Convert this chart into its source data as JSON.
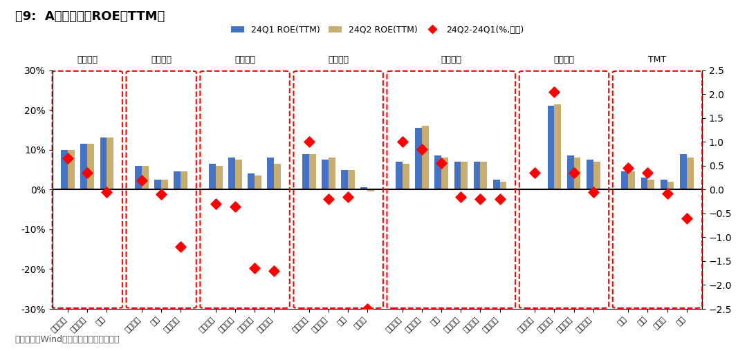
{
  "title": "图9:  A股一级行业ROE（TTM）",
  "footnote": "数据来源：Wind，广发证券发展研究中心",
  "legend": [
    "24Q1 ROE(TTM)",
    "24Q2 ROE(TTM)",
    "24Q2-24Q1(%,右轴)"
  ],
  "bar_color_q1": "#4472C4",
  "bar_color_q2": "#C9AD6E",
  "diamond_color": "#FF0000",
  "groups": [
    {
      "name": "上游资源",
      "categories": [
        "有色金属",
        "石油石化",
        "煤炭"
      ],
      "q1": [
        10.0,
        11.5,
        13.0
      ],
      "q2": [
        10.0,
        11.5,
        13.0
      ],
      "diff": [
        0.65,
        0.35,
        -0.05
      ]
    },
    {
      "name": "中游材料",
      "categories": [
        "基础化工",
        "钢铁",
        "建筑材料"
      ],
      "q1": [
        6.0,
        2.5,
        4.5
      ],
      "q2": [
        6.0,
        2.5,
        4.5
      ],
      "diff": [
        0.2,
        -0.1,
        -1.2
      ]
    },
    {
      "name": "中游制造",
      "categories": [
        "机械设备",
        "建筑装饰",
        "国防军工",
        "电力设备"
      ],
      "q1": [
        6.5,
        8.0,
        4.0,
        8.0
      ],
      "q2": [
        6.0,
        7.5,
        3.5,
        6.5
      ],
      "diff": [
        -0.3,
        -0.35,
        -1.65,
        -1.7
      ]
    },
    {
      "name": "其他周期",
      "categories": [
        "公用事业",
        "交通运输",
        "环保",
        "房地产"
      ],
      "q1": [
        9.0,
        7.5,
        5.0,
        0.5
      ],
      "q2": [
        9.0,
        8.0,
        5.0,
        -0.5
      ],
      "diff": [
        1.0,
        -0.2,
        -0.15,
        -2.5
      ]
    },
    {
      "name": "可选消费",
      "categories": [
        "社会服务",
        "家用电器",
        "汽车",
        "轻工制造",
        "美容护理",
        "商贸零售"
      ],
      "q1": [
        7.0,
        15.5,
        8.5,
        7.0,
        7.0,
        2.5
      ],
      "q2": [
        6.5,
        16.0,
        8.0,
        7.0,
        7.0,
        2.0
      ],
      "diff": [
        1.0,
        0.85,
        0.55,
        -0.15,
        -0.2,
        -0.2
      ]
    },
    {
      "name": "必需消费",
      "categories": [
        "农林牧渔",
        "食品饮料",
        "纺织服饰",
        "医药生物"
      ],
      "q1": [
        0.0,
        21.0,
        8.5,
        7.5
      ],
      "q2": [
        0.3,
        21.5,
        8.0,
        7.0
      ],
      "diff": [
        0.35,
        2.05,
        0.35,
        -0.05
      ]
    },
    {
      "name": "TMT",
      "categories": [
        "电子",
        "通信",
        "计算机",
        "传媒"
      ],
      "q1": [
        4.5,
        3.0,
        2.5,
        9.0
      ],
      "q2": [
        4.5,
        2.5,
        2.0,
        8.0
      ],
      "diff": [
        0.45,
        0.35,
        -0.08,
        -0.6
      ]
    }
  ],
  "ylim_left": [
    -30,
    30
  ],
  "ylim_right": [
    -2.5,
    2.5
  ],
  "background_color": "#FFFFFF",
  "box_colors": {
    "border": "#FF0000",
    "fill": "none"
  }
}
